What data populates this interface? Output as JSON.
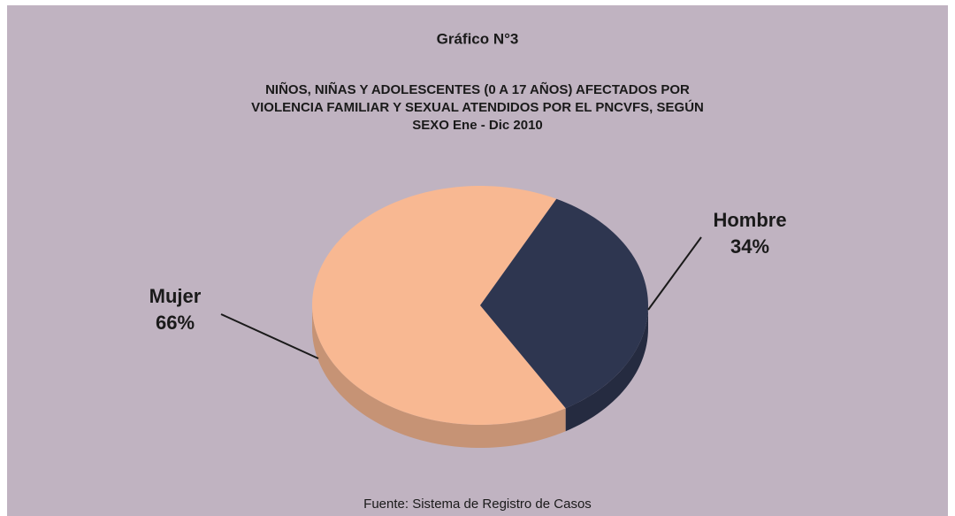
{
  "chart_data": {
    "type": "pie",
    "title": "Gráfico N°3",
    "subtitle": [
      "NIÑOS, NIÑAS Y ADOLESCENTES (0 A 17 AÑOS) AFECTADOS POR",
      "VIOLENCIA FAMILIAR Y SEXUAL ATENDIDOS POR EL PNCVFS, SEGÚN",
      "SEXO Ene - Dic  2010"
    ],
    "categories": [
      "Mujer",
      "Hombre"
    ],
    "values": [
      66,
      34
    ],
    "value_labels": [
      "66%",
      "34%"
    ],
    "colors": [
      "#f8b892",
      "#2e3650"
    ],
    "source": "Fuente: Sistema de Registro de Casos"
  }
}
